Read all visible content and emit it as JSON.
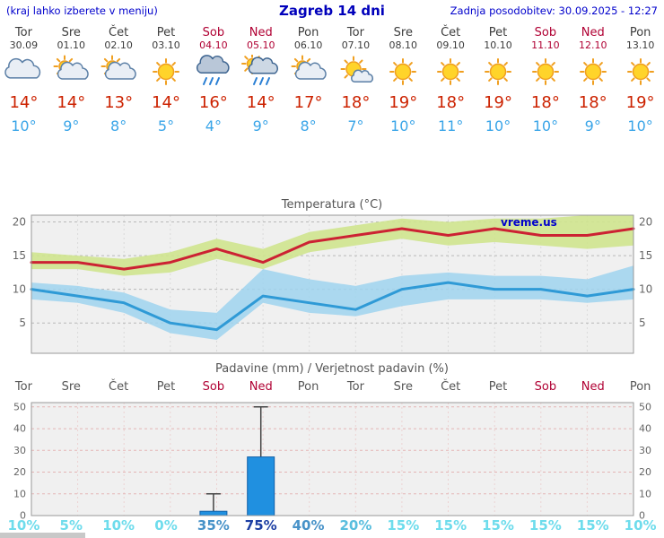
{
  "header": {
    "left_note": "(kraj lahko izberete v meniju)",
    "title": "Zagreb 14 dni",
    "updated": "Zadnja posodobitev: 30.09.2025 - 12:27"
  },
  "watermark": "vreme.us",
  "colors": {
    "accent_blue": "#0000cc",
    "temp_max_line": "#cc2233",
    "temp_min_line": "#2f9ad6",
    "temp_max_band": "#cfe48e",
    "temp_min_band": "#9fd4ef",
    "weekend_text": "#b00033",
    "weekday_text": "#555555",
    "bar_fill": "#2090e0",
    "bar_border": "#1060a8",
    "grid_gray": "#b8b8b8",
    "grid_pink": "#e4b4b4",
    "prob_low": "#6edcec",
    "prob_midlow": "#59bede",
    "prob_mid": "#4792c8",
    "prob_high": "#1d3fa3"
  },
  "days": [
    {
      "name": "Tor",
      "date": "30.09",
      "weekend": false,
      "icon": "cloudy-icon",
      "tmax": "14°",
      "tmin": "10°"
    },
    {
      "name": "Sre",
      "date": "01.10",
      "weekend": false,
      "icon": "partly-cloudy-icon",
      "tmax": "14°",
      "tmin": "9°"
    },
    {
      "name": "Čet",
      "date": "02.10",
      "weekend": false,
      "icon": "partly-cloudy-icon",
      "tmax": "13°",
      "tmin": "8°"
    },
    {
      "name": "Pet",
      "date": "03.10",
      "weekend": false,
      "icon": "sunny-icon",
      "tmax": "14°",
      "tmin": "5°"
    },
    {
      "name": "Sob",
      "date": "04.10",
      "weekend": true,
      "icon": "rain-icon",
      "tmax": "16°",
      "tmin": "4°"
    },
    {
      "name": "Ned",
      "date": "05.10",
      "weekend": true,
      "icon": "rain-sun-icon",
      "tmax": "14°",
      "tmin": "9°"
    },
    {
      "name": "Pon",
      "date": "06.10",
      "weekend": false,
      "icon": "partly-cloudy-icon",
      "tmax": "17°",
      "tmin": "8°"
    },
    {
      "name": "Tor",
      "date": "07.10",
      "weekend": false,
      "icon": "mostly-sunny-icon",
      "tmax": "18°",
      "tmin": "7°"
    },
    {
      "name": "Sre",
      "date": "08.10",
      "weekend": false,
      "icon": "sunny-icon",
      "tmax": "19°",
      "tmin": "10°"
    },
    {
      "name": "Čet",
      "date": "09.10",
      "weekend": false,
      "icon": "sunny-icon",
      "tmax": "18°",
      "tmin": "11°"
    },
    {
      "name": "Pet",
      "date": "10.10",
      "weekend": false,
      "icon": "sunny-icon",
      "tmax": "19°",
      "tmin": "10°"
    },
    {
      "name": "Sob",
      "date": "11.10",
      "weekend": true,
      "icon": "sunny-icon",
      "tmax": "18°",
      "tmin": "10°"
    },
    {
      "name": "Ned",
      "date": "12.10",
      "weekend": true,
      "icon": "sunny-icon",
      "tmax": "18°",
      "tmin": "9°"
    },
    {
      "name": "Pon",
      "date": "13.10",
      "weekend": false,
      "icon": "sunny-icon",
      "tmax": "19°",
      "tmin": "10°"
    }
  ],
  "chart_data": [
    {
      "type": "line",
      "title": "Temperatura (°C)",
      "x_labels": [
        "Tor",
        "Sre",
        "Čet",
        "Pet",
        "Sob",
        "Ned",
        "Pon",
        "Tor",
        "Sre",
        "Čet",
        "Pet",
        "Sob",
        "Ned",
        "Pon"
      ],
      "ylim": [
        0.5,
        21
      ],
      "yticks": [
        5,
        10,
        15,
        20
      ],
      "grid": true,
      "legend": "none",
      "series": [
        {
          "name": "tmax",
          "values": [
            14,
            14,
            13,
            14,
            16,
            14,
            17,
            18,
            19,
            18,
            19,
            18,
            18,
            19
          ]
        },
        {
          "name": "tmax_band_upper",
          "values": [
            15.5,
            15,
            14.5,
            15.5,
            17.5,
            16,
            18.5,
            19.5,
            20.5,
            20,
            20.5,
            20.5,
            21,
            21
          ]
        },
        {
          "name": "tmax_band_lower",
          "values": [
            13,
            13,
            12,
            12.5,
            14.5,
            13,
            15.5,
            16.5,
            17.5,
            16.5,
            17,
            16.5,
            16,
            16.5
          ]
        },
        {
          "name": "tmin",
          "values": [
            10,
            9,
            8,
            5,
            4,
            9,
            8,
            7,
            10,
            11,
            10,
            10,
            9,
            10
          ]
        },
        {
          "name": "tmin_band_upper",
          "values": [
            11,
            10.5,
            9.5,
            7,
            6.5,
            13,
            11.5,
            10.5,
            12,
            12.5,
            12,
            12,
            11.5,
            13.5
          ]
        },
        {
          "name": "tmin_band_lower",
          "values": [
            8.5,
            8,
            6.5,
            3.5,
            2.5,
            8,
            6.5,
            6,
            7.5,
            8.5,
            8.5,
            8.5,
            8,
            8.5
          ]
        }
      ]
    },
    {
      "type": "bar",
      "title": "Padavine (mm) / Verjetnost padavin (%)",
      "categories": [
        "Tor",
        "Sre",
        "Čet",
        "Pet",
        "Sob",
        "Ned",
        "Pon",
        "Tor",
        "Sre",
        "Čet",
        "Pet",
        "Sob",
        "Ned",
        "Pon"
      ],
      "values": [
        0,
        0,
        0,
        0,
        2,
        27,
        0,
        0,
        0,
        0,
        0,
        0,
        0,
        0
      ],
      "whisker_max": [
        0,
        0,
        0,
        0,
        10,
        50,
        0,
        0,
        0,
        0,
        0,
        0,
        0,
        0
      ],
      "probabilities_pct": [
        10,
        5,
        10,
        0,
        35,
        75,
        40,
        20,
        15,
        15,
        15,
        15,
        15,
        10
      ],
      "ylim": [
        0,
        52
      ],
      "yticks": [
        0,
        10,
        20,
        30,
        40,
        50
      ],
      "grid": true,
      "legend": "none"
    }
  ]
}
